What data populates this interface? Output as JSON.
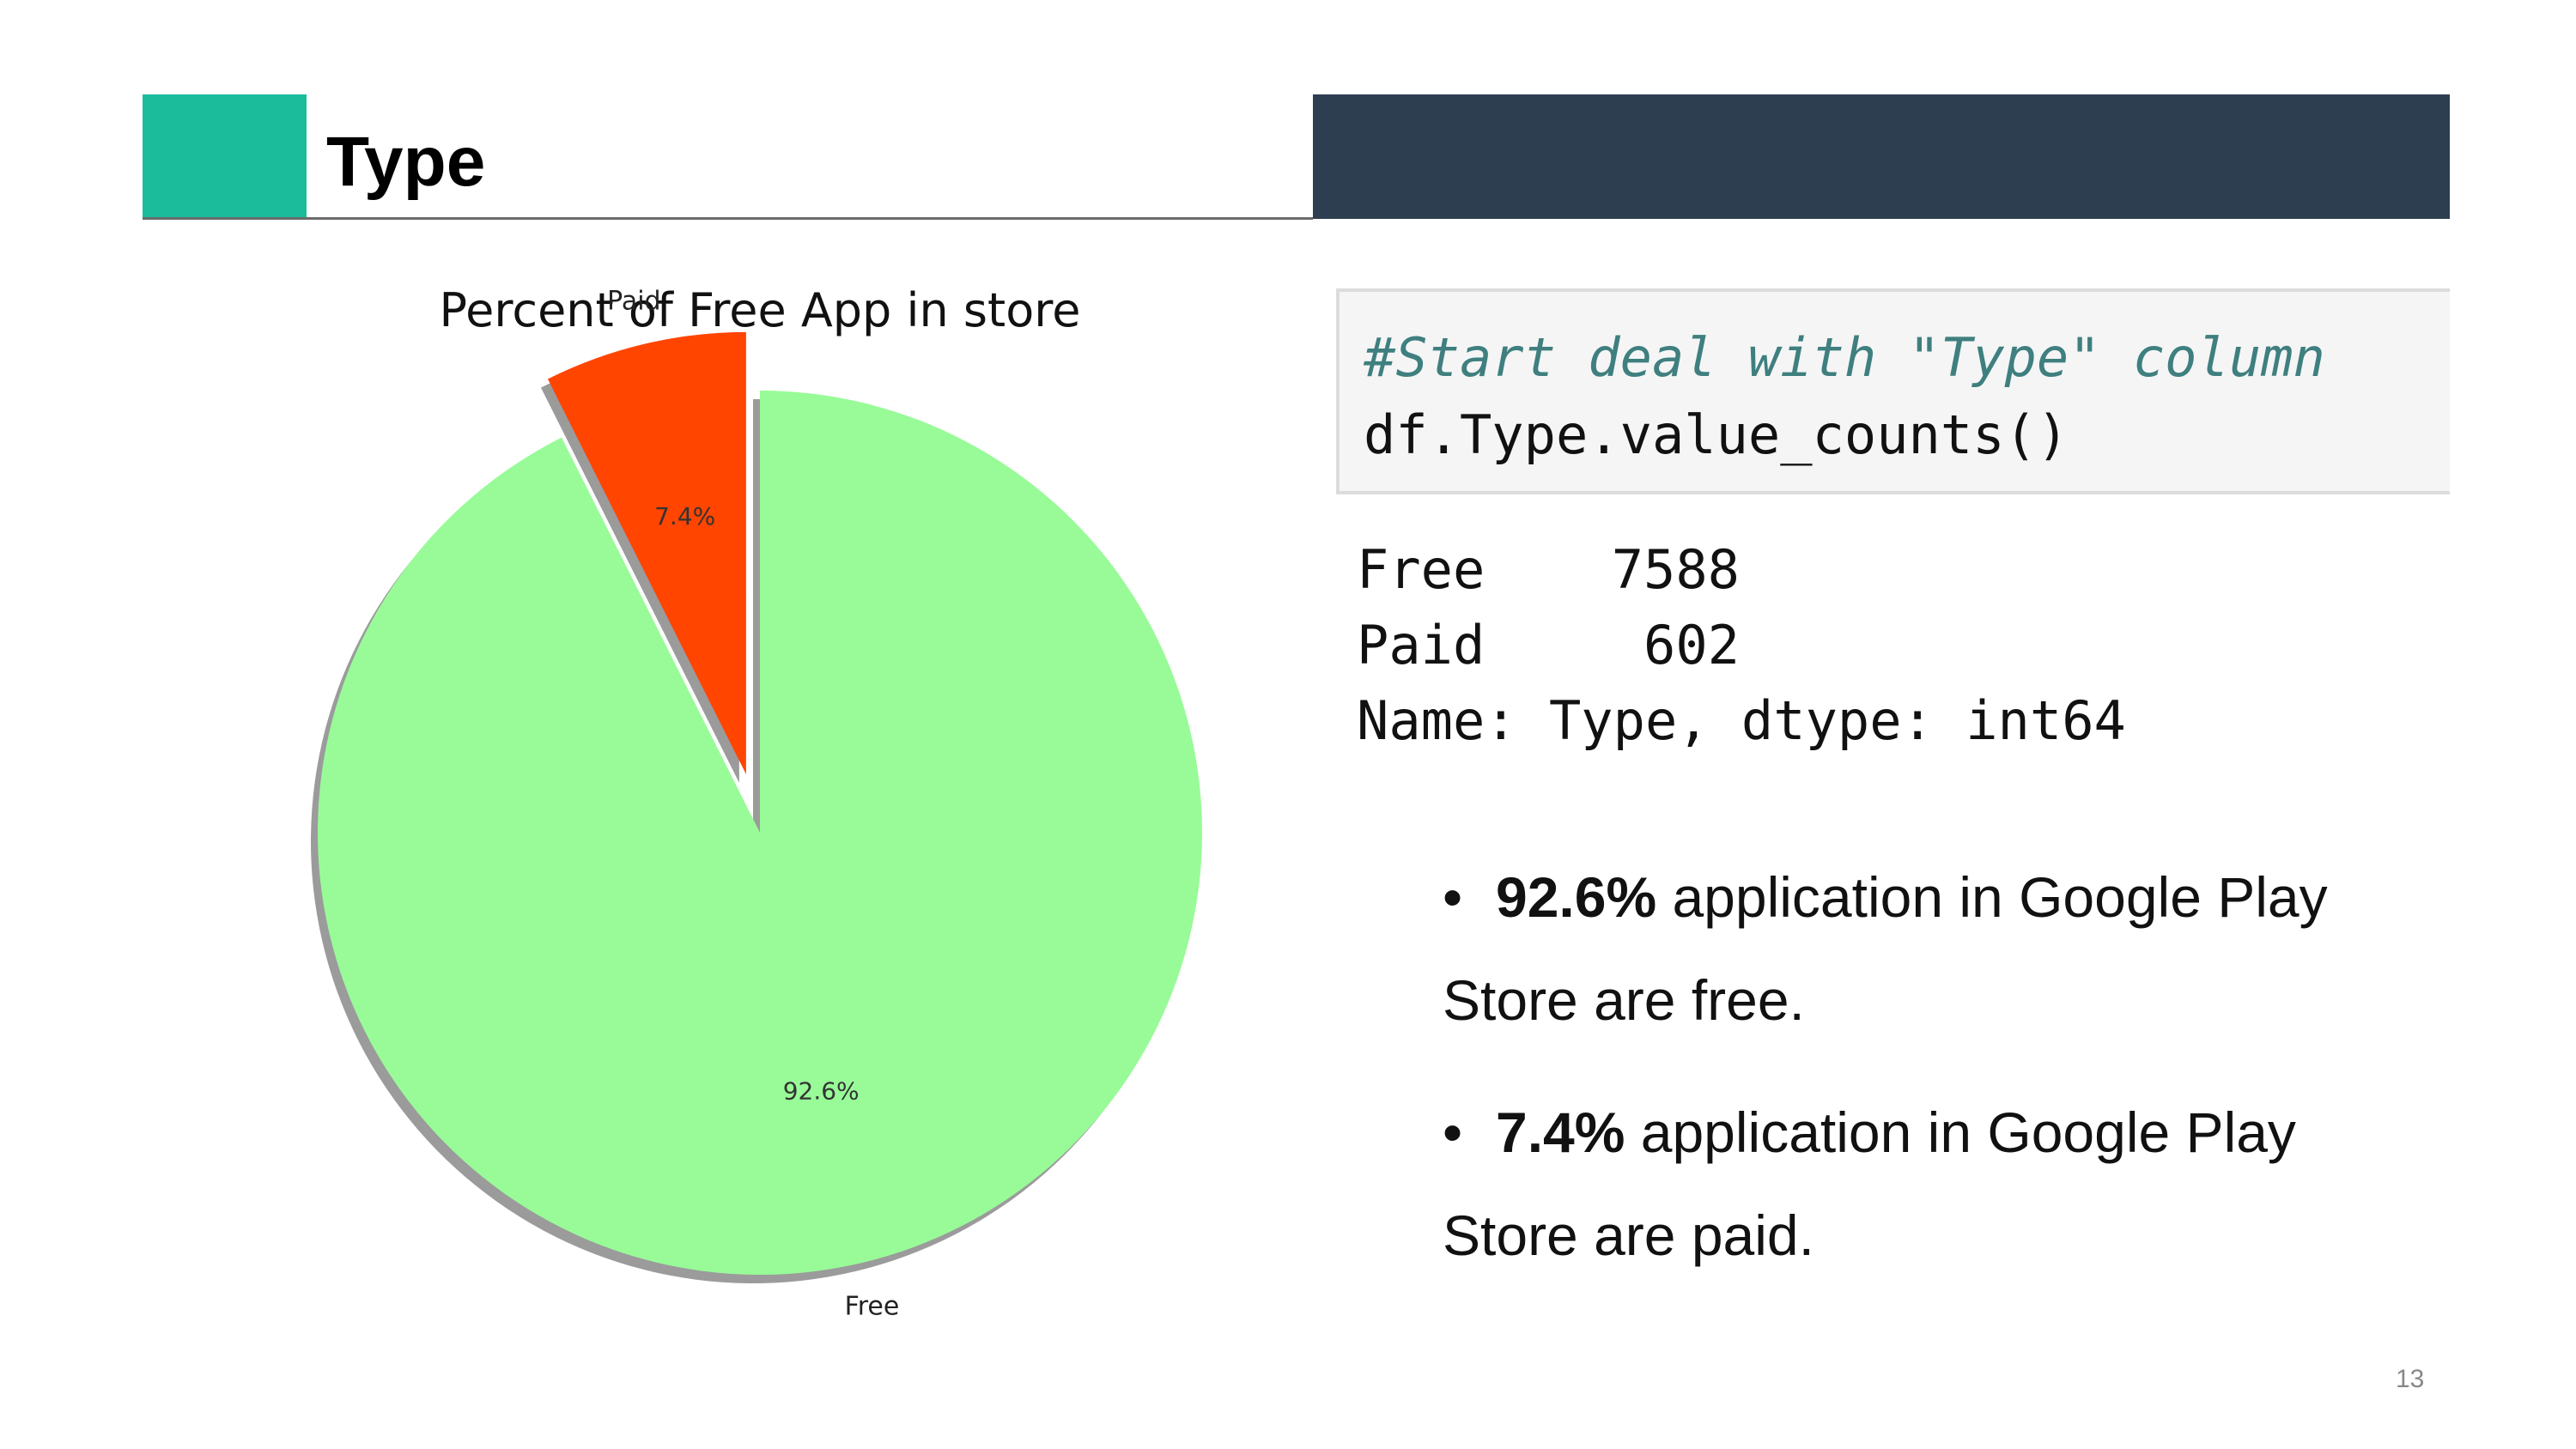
{
  "slide": {
    "title": "Type",
    "page_number": "13",
    "colors": {
      "accent": "#1abc9c",
      "header_bar": "#2c3e50"
    }
  },
  "code": {
    "comment": "#Start deal with \"Type\" column",
    "line": "df.Type.value_counts()"
  },
  "output": {
    "rows": [
      {
        "key": "Free",
        "value": "7588"
      },
      {
        "key": "Paid",
        "value": "602"
      }
    ],
    "footer": "Name: Type, dtype: int64"
  },
  "bullets": [
    {
      "bold": "92.6%",
      "rest": " application in Google Play Store are free."
    },
    {
      "bold": "7.4%",
      "rest": " application in Google Play Store are paid."
    }
  ],
  "chart_data": {
    "type": "pie",
    "title": "Percent of Free App in store",
    "slices": [
      {
        "label": "Free",
        "value": 92.6,
        "pct_label": "92.6%",
        "color": "#98fb98",
        "exploded": false
      },
      {
        "label": "Paid",
        "value": 7.4,
        "pct_label": "7.4%",
        "color": "#ff4500",
        "exploded": true
      }
    ],
    "shadow": true
  }
}
